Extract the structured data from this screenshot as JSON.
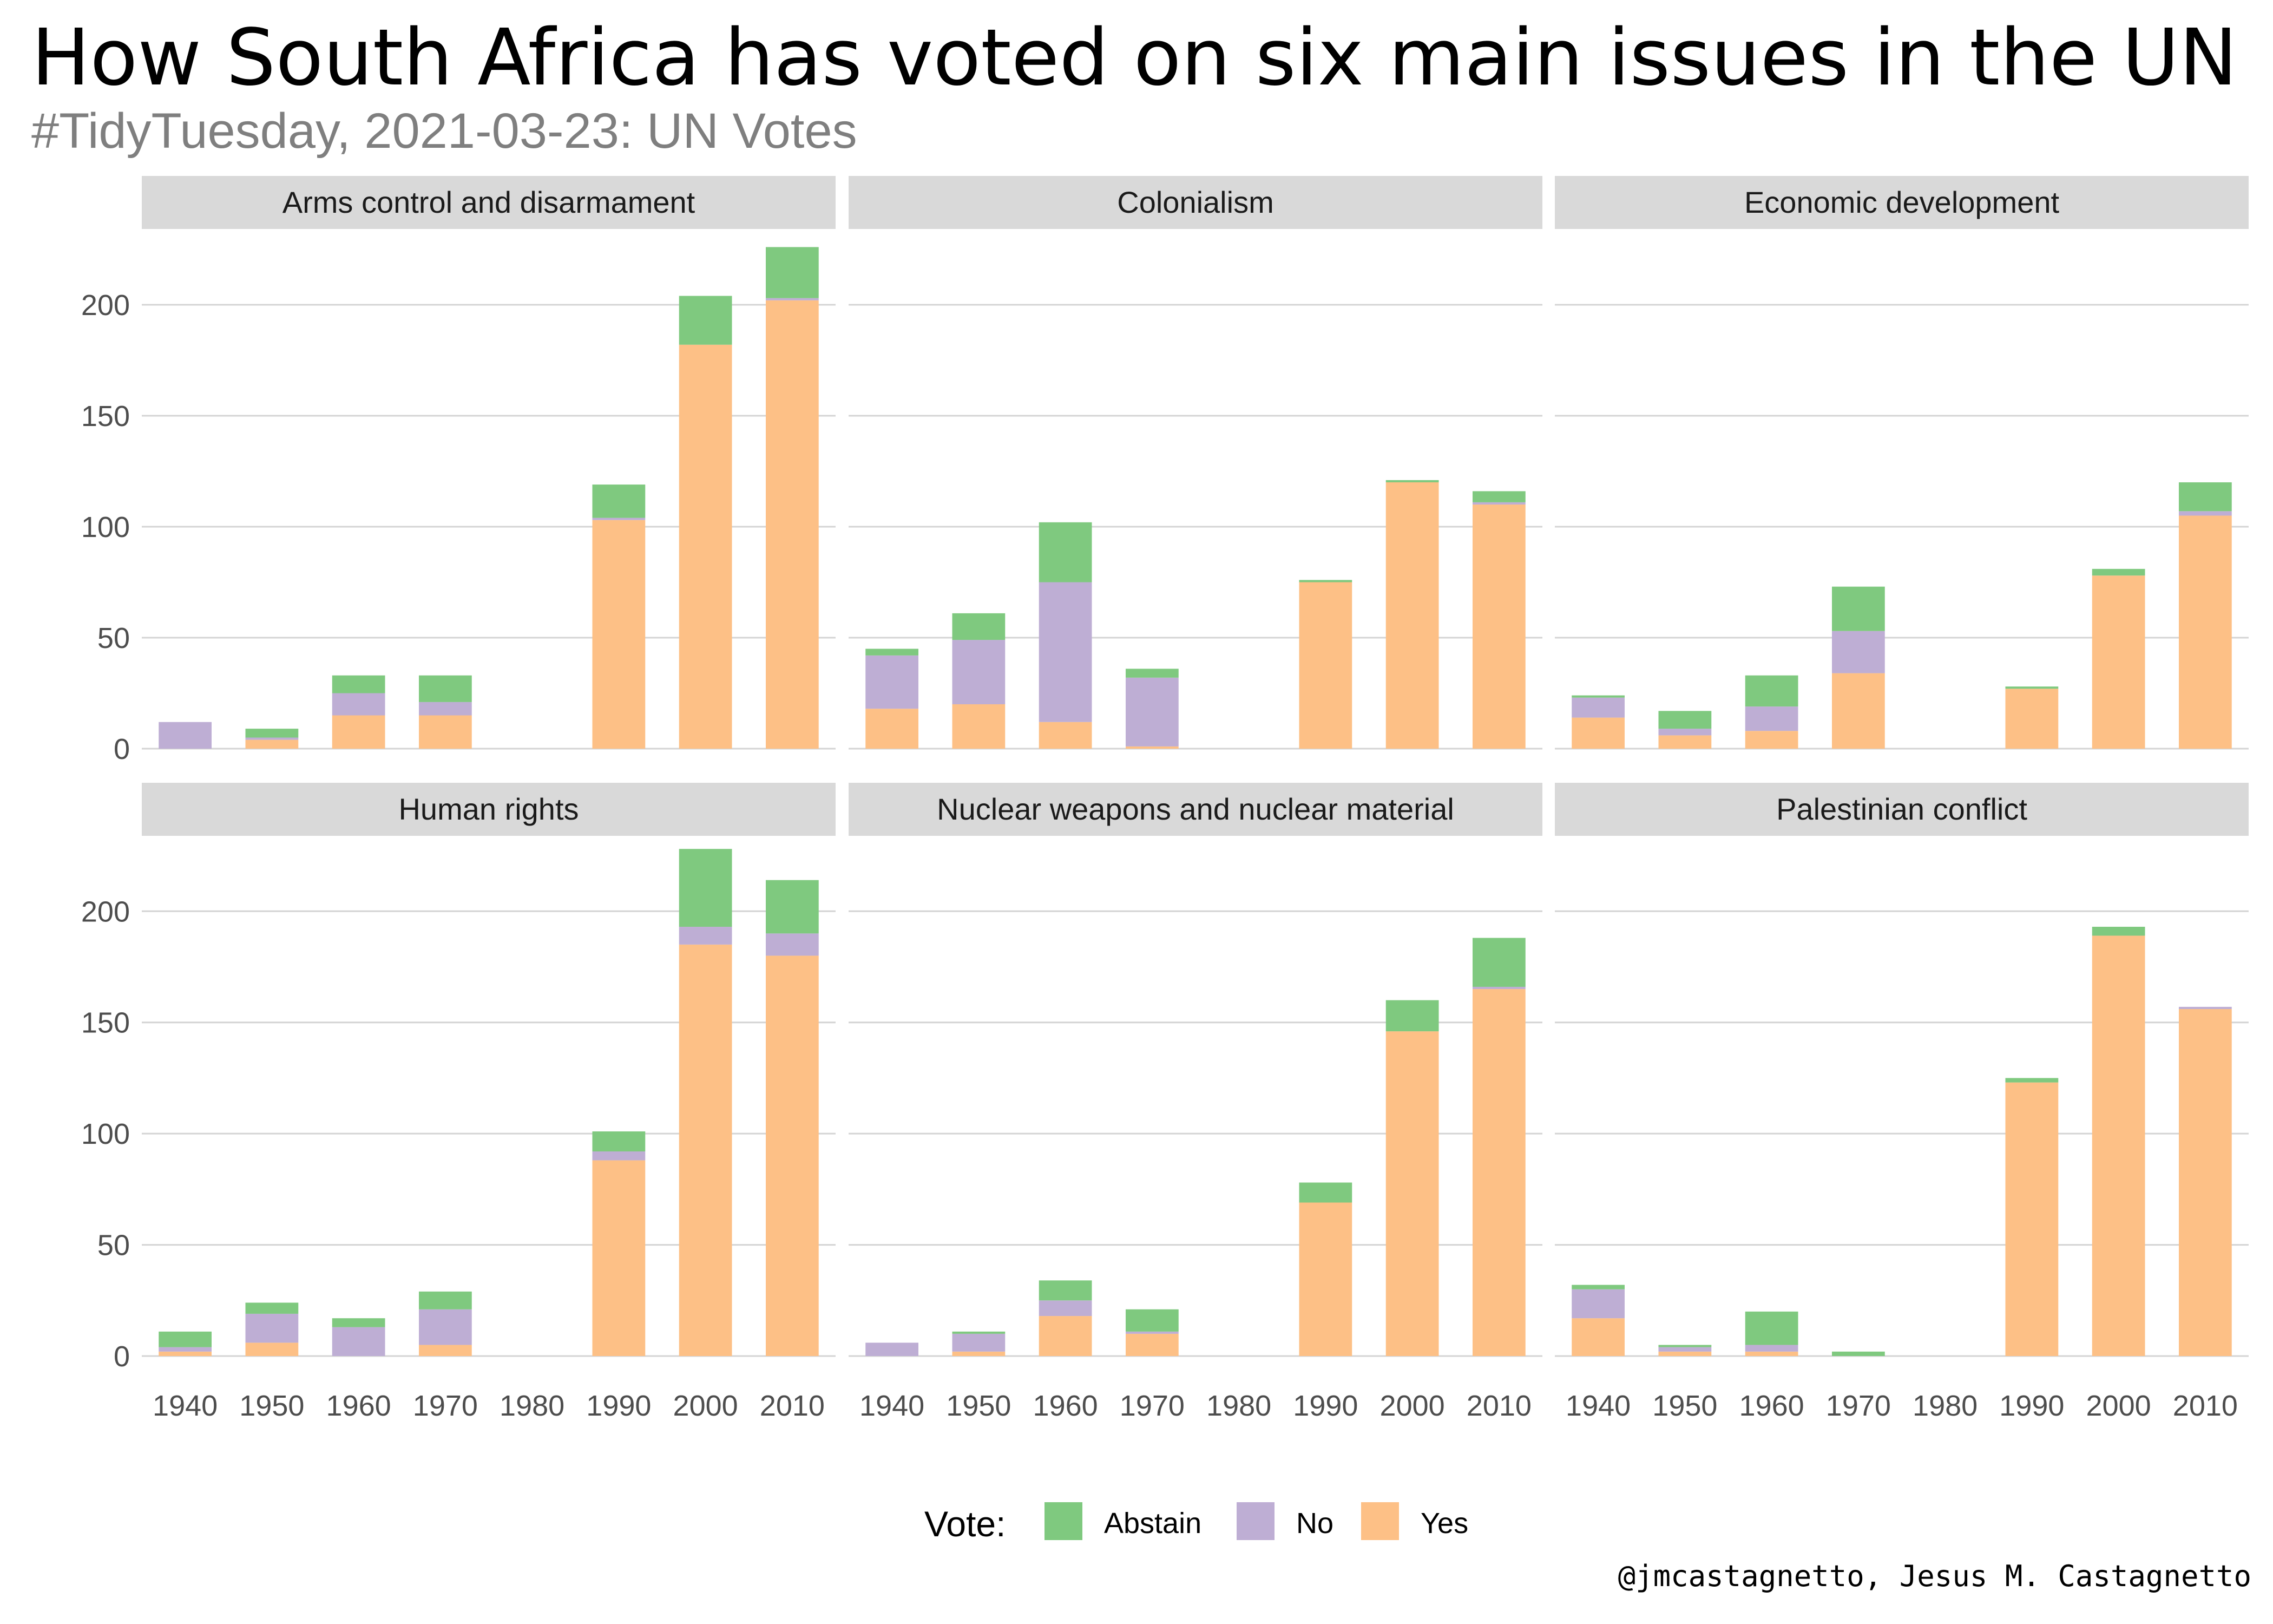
{
  "title": "How South Africa has voted on six main issues in the UN",
  "subtitle": "#TidyTuesday, 2021-03-23: UN Votes",
  "caption": "@jmcastagnetto, Jesus M. Castagnetto",
  "legend": {
    "title": "Vote:",
    "placement": "bottom",
    "items": [
      {
        "label": "Abstain",
        "color": "#7fc97f"
      },
      {
        "label": "No",
        "color": "#beaed4"
      },
      {
        "label": "Yes",
        "color": "#fdc086"
      }
    ]
  },
  "chart_data": {
    "type": "bar",
    "stacked": true,
    "facets_layout": "2 rows x 3 columns",
    "categories": [
      "1940",
      "1950",
      "1960",
      "1970",
      "1980",
      "1990",
      "2000",
      "2010"
    ],
    "ylim": [
      0,
      230
    ],
    "yticks": [
      0,
      50,
      100,
      150,
      200
    ],
    "grid": true,
    "series_order": [
      "Yes",
      "No",
      "Abstain"
    ],
    "series_colors": {
      "Yes": "#fdc086",
      "No": "#beaed4",
      "Abstain": "#7fc97f"
    },
    "facets": [
      {
        "title": "Arms control and disarmament",
        "series": [
          {
            "name": "Yes",
            "values": [
              0,
              4,
              15,
              15,
              0,
              103,
              182,
              202
            ]
          },
          {
            "name": "No",
            "values": [
              12,
              1,
              10,
              6,
              0,
              1,
              0,
              1
            ]
          },
          {
            "name": "Abstain",
            "values": [
              0,
              4,
              8,
              12,
              0,
              15,
              22,
              23
            ]
          }
        ]
      },
      {
        "title": "Colonialism",
        "series": [
          {
            "name": "Yes",
            "values": [
              18,
              20,
              12,
              1,
              0,
              75,
              120,
              110
            ]
          },
          {
            "name": "No",
            "values": [
              24,
              29,
              63,
              31,
              0,
              0,
              0,
              1
            ]
          },
          {
            "name": "Abstain",
            "values": [
              3,
              12,
              27,
              4,
              0,
              1,
              1,
              5
            ]
          }
        ]
      },
      {
        "title": "Economic development",
        "series": [
          {
            "name": "Yes",
            "values": [
              14,
              6,
              8,
              34,
              0,
              27,
              78,
              105
            ]
          },
          {
            "name": "No",
            "values": [
              9,
              3,
              11,
              19,
              0,
              0,
              0,
              2
            ]
          },
          {
            "name": "Abstain",
            "values": [
              1,
              8,
              14,
              20,
              0,
              1,
              3,
              13
            ]
          }
        ]
      },
      {
        "title": "Human rights",
        "series": [
          {
            "name": "Yes",
            "values": [
              2,
              6,
              0,
              5,
              0,
              88,
              185,
              180
            ]
          },
          {
            "name": "No",
            "values": [
              2,
              13,
              13,
              16,
              0,
              4,
              8,
              10
            ]
          },
          {
            "name": "Abstain",
            "values": [
              7,
              5,
              4,
              8,
              0,
              9,
              35,
              24
            ]
          }
        ]
      },
      {
        "title": "Nuclear weapons and nuclear material",
        "series": [
          {
            "name": "Yes",
            "values": [
              0,
              2,
              18,
              10,
              0,
              69,
              146,
              165
            ]
          },
          {
            "name": "No",
            "values": [
              6,
              8,
              7,
              1,
              0,
              0,
              0,
              1
            ]
          },
          {
            "name": "Abstain",
            "values": [
              0,
              1,
              9,
              10,
              0,
              9,
              14,
              22
            ]
          }
        ]
      },
      {
        "title": "Palestinian conflict",
        "series": [
          {
            "name": "Yes",
            "values": [
              17,
              2,
              2,
              0,
              0,
              123,
              189,
              156
            ]
          },
          {
            "name": "No",
            "values": [
              13,
              2,
              3,
              0,
              0,
              0,
              0,
              1
            ]
          },
          {
            "name": "Abstain",
            "values": [
              2,
              1,
              15,
              2,
              0,
              2,
              4,
              0
            ]
          }
        ]
      }
    ]
  }
}
